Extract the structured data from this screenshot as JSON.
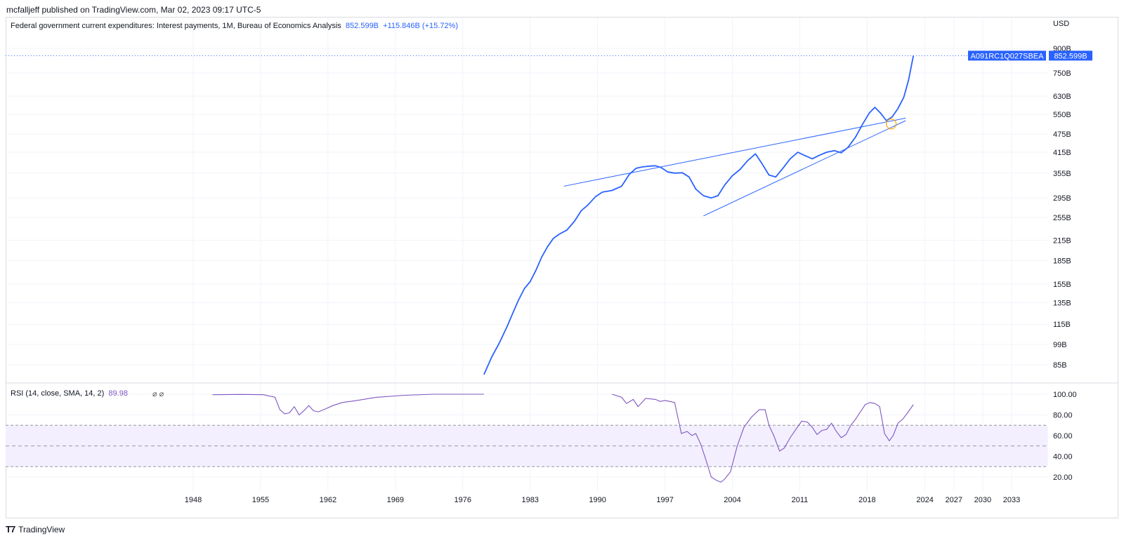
{
  "header": {
    "published": "mcfalljeff published on TradingView.com, Mar 02, 2023 09:17 UTC-5"
  },
  "legend": {
    "title": "Federal government current expenditures: Interest payments, 1M, Bureau of Economics Analysis",
    "last_value": "852.599B",
    "change": "+115.846B (+15.72%)"
  },
  "price_axis": {
    "currency": "USD",
    "ticks": [
      "900B",
      "750B",
      "630B",
      "550B",
      "475B",
      "415B",
      "355B",
      "295B",
      "255B",
      "215B",
      "185B",
      "155B",
      "135B",
      "115B",
      "99B",
      "85B"
    ],
    "symbol_badge": "A091RC1Q027SBEA",
    "value_badge": "852.599B"
  },
  "rsi": {
    "label": "RSI (14, close, SMA, 14, 2)",
    "value": "89.98",
    "ticks": [
      "100.00",
      "80.00",
      "60.00",
      "40.00",
      "20.00"
    ]
  },
  "time_axis": {
    "ticks": [
      "1948",
      "1955",
      "1962",
      "1969",
      "1976",
      "1983",
      "1990",
      "1997",
      "2004",
      "2011",
      "2018",
      "2024",
      "2027",
      "2030",
      "2033"
    ]
  },
  "footer": {
    "brand": "TradingView"
  },
  "colors": {
    "line": "#2962ff",
    "rsi": "#7e57c2",
    "rsi_band": "#f3efff",
    "grid": "#f0f3fa"
  },
  "chart_data": [
    {
      "type": "line",
      "title": "Federal government current expenditures: Interest payments, 1M, Bureau of Economics Analysis",
      "ylabel": "USD",
      "yscale": "log",
      "ylim": [
        77,
        940
      ],
      "xlim": [
        1940,
        2037
      ],
      "x_ticks": [
        1948,
        1955,
        1962,
        1969,
        1976,
        1983,
        1990,
        1997,
        2004,
        2011,
        2018,
        2024,
        2027,
        2030,
        2033
      ],
      "y_ticks": [
        900,
        750,
        630,
        550,
        475,
        415,
        355,
        295,
        255,
        215,
        185,
        155,
        135,
        115,
        99,
        85
      ],
      "series": [
        {
          "values_unit": "billions USD",
          "x": [
            1978.2,
            1979.0,
            1979.8,
            1980.6,
            1981.2,
            1981.8,
            1982.4,
            1983.0,
            1983.6,
            1984.2,
            1984.8,
            1985.4,
            1986.0,
            1986.8,
            1987.6,
            1988.3,
            1989.0,
            1989.8,
            1990.5,
            1991.5,
            1992.5,
            1993.3,
            1994.0,
            1994.7,
            1995.4,
            1996.0,
            1996.6,
            1997.3,
            1998.0,
            1998.8,
            1999.5,
            2000.2,
            2001.0,
            2001.8,
            2002.5,
            2003.2,
            2004.0,
            2004.8,
            2005.6,
            2006.4,
            2007.1,
            2007.8,
            2008.5,
            2009.3,
            2010.0,
            2010.8,
            2011.5,
            2012.3,
            2013.0,
            2013.8,
            2014.6,
            2015.3,
            2016.0,
            2016.8,
            2017.5,
            2018.2,
            2018.8,
            2019.4,
            2020.0,
            2020.6,
            2021.2,
            2021.8,
            2022.3,
            2022.8
          ],
          "y": [
            79,
            90,
            100,
            113,
            125,
            138,
            150,
            158,
            172,
            190,
            205,
            218,
            225,
            232,
            248,
            268,
            280,
            298,
            308,
            312,
            322,
            352,
            368,
            372,
            374,
            375,
            370,
            358,
            355,
            356,
            345,
            315,
            300,
            295,
            300,
            325,
            348,
            365,
            390,
            410,
            380,
            350,
            345,
            370,
            395,
            415,
            405,
            395,
            405,
            415,
            420,
            413,
            430,
            465,
            510,
            555,
            580,
            555,
            525,
            540,
            575,
            625,
            710,
            852.599
          ]
        }
      ],
      "annotations": {
        "trendline_upper": [
          [
            1986.5,
            322
          ],
          [
            2022.0,
            535
          ]
        ],
        "trendline_lower": [
          [
            2001.0,
            258
          ],
          [
            2022.0,
            525
          ]
        ],
        "marker_circle": [
          2020.5,
          512
        ],
        "last_value_label": "852.599B"
      }
    },
    {
      "type": "line",
      "title": "RSI (14, close, SMA, 14, 2)",
      "ylim": [
        10,
        105
      ],
      "xlim": [
        1940,
        2037
      ],
      "y_ticks": [
        100,
        80,
        60,
        40,
        20
      ],
      "bands": {
        "upper": 70,
        "middle": 50,
        "lower": 30
      },
      "last_value": 89.98,
      "series": [
        {
          "name": "RSI",
          "segments": [
            {
              "x": [
                1950.0,
                1953.0,
                1955.3,
                1956.5,
                1957.0,
                1957.5,
                1958.0,
                1958.5,
                1959.0,
                1959.5,
                1960.0,
                1960.5,
                1961.0,
                1961.8,
                1962.5,
                1963.5,
                1965.0,
                1967.0,
                1970.0,
                1973.0,
                1976.0,
                1978.2
              ],
              "y": [
                99.5,
                99.8,
                99.5,
                97,
                85,
                81,
                82,
                88,
                80,
                84,
                89,
                84,
                83,
                86,
                89,
                92,
                94,
                97,
                99,
                100,
                100,
                100
              ]
            },
            {
              "x": [
                1991.5,
                1992.5,
                1993.0,
                1993.7,
                1994.2,
                1995.0,
                1996.0,
                1996.5,
                1997.0,
                1997.5,
                1998.0,
                1998.7,
                1999.3,
                1999.8,
                2000.2,
                2000.7,
                2001.2,
                2001.8,
                2002.3,
                2002.8,
                2003.2,
                2003.8,
                2004.5,
                2005.2,
                2006.0,
                2006.8,
                2007.4,
                2007.8,
                2008.3,
                2008.9,
                2009.4,
                2010.0,
                2010.6,
                2011.2,
                2011.8,
                2012.3,
                2012.8,
                2013.3,
                2013.8,
                2014.3,
                2014.8,
                2015.3,
                2015.8,
                2016.3,
                2016.8,
                2017.3,
                2017.8,
                2018.3,
                2018.8,
                2019.3,
                2019.8,
                2020.3,
                2020.7,
                2021.2,
                2021.7,
                2022.2,
                2022.8
              ],
              "y": [
                100,
                97,
                91,
                95,
                88,
                96,
                95,
                93,
                94,
                93,
                92,
                62,
                64,
                60,
                62,
                52,
                38,
                20,
                17,
                15,
                18,
                25,
                50,
                68,
                78,
                85,
                85,
                70,
                60,
                45,
                48,
                58,
                66,
                74,
                73,
                68,
                61,
                65,
                66,
                72,
                64,
                58,
                61,
                70,
                76,
                83,
                90,
                92,
                91,
                88,
                62,
                55,
                60,
                72,
                76,
                82,
                89.98
              ]
            }
          ]
        }
      ]
    }
  ]
}
